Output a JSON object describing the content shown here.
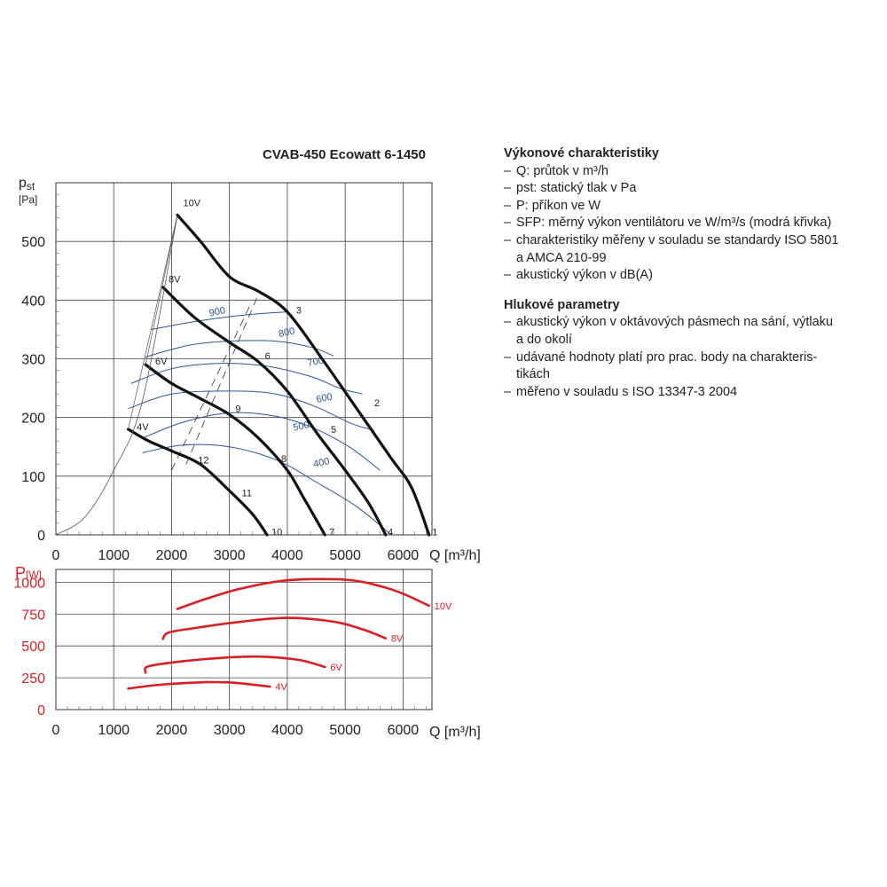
{
  "title": "CVAB-450 Ecowatt 6-1450",
  "colors": {
    "pressure_curves": "#111111",
    "sfp_curves": "#2b5597",
    "power_curves": "#d81f26",
    "grid": "#444444"
  },
  "side": {
    "sections": [
      {
        "heading": "Výkonové charakteristiky",
        "items": [
          [
            "Q: průtok v m³/h"
          ],
          [
            "pst: statický tlak v Pa"
          ],
          [
            "P: příkon ve W"
          ],
          [
            "SFP: měrný výkon ventilátoru ve W/m³/s (modrá křivka)"
          ],
          [
            "charakteristiky měřeny v souladu se standardy ISO 5801",
            "a AMCA 210-99"
          ],
          [
            "akustický výkon v dB(A)"
          ]
        ]
      },
      {
        "heading": "Hlukové parametry",
        "items": [
          [
            "akustický výkon v oktávových pásmech na sání, výtlaku",
            "a do okolí"
          ],
          [
            "udávané hodnoty platí pro prac. body na charakteris-",
            "tikách"
          ],
          [
            "měřeno v souladu s ISO 13347-3 2004"
          ]
        ]
      }
    ]
  },
  "chart_data": [
    {
      "type": "line",
      "ylabel_main": "p",
      "ylabel_sub": "st",
      "yunit": "[Pa]",
      "xlabel": "Q [m³/h]",
      "xlim": [
        0,
        6500
      ],
      "ylim": [
        0,
        600
      ],
      "xticks": [
        0,
        1000,
        2000,
        3000,
        4000,
        5000,
        6000
      ],
      "yticks": [
        0,
        100,
        200,
        300,
        400,
        500
      ],
      "grid": true,
      "series": [
        {
          "name": "10V",
          "points": [
            [
              2100,
              545
            ],
            [
              2500,
              500
            ],
            [
              3000,
              440
            ],
            [
              3500,
              415
            ],
            [
              4000,
              380
            ],
            [
              4600,
              300
            ],
            [
              5200,
              215
            ],
            [
              5800,
              130
            ],
            [
              6150,
              80
            ],
            [
              6450,
              0
            ]
          ]
        },
        {
          "name": "8V",
          "points": [
            [
              1850,
              422
            ],
            [
              2400,
              370
            ],
            [
              3000,
              328
            ],
            [
              3500,
              295
            ],
            [
              4000,
              245
            ],
            [
              4500,
              175
            ],
            [
              5000,
              110
            ],
            [
              5400,
              55
            ],
            [
              5700,
              0
            ]
          ]
        },
        {
          "name": "6V",
          "points": [
            [
              1550,
              290
            ],
            [
              2000,
              258
            ],
            [
              2500,
              232
            ],
            [
              3000,
              205
            ],
            [
              3500,
              165
            ],
            [
              4000,
              110
            ],
            [
              4300,
              60
            ],
            [
              4650,
              0
            ]
          ]
        },
        {
          "name": "4V",
          "points": [
            [
              1250,
              180
            ],
            [
              1600,
              160
            ],
            [
              2000,
              143
            ],
            [
              2500,
              120
            ],
            [
              3000,
              75
            ],
            [
              3400,
              35
            ],
            [
              3650,
              0
            ]
          ]
        },
        {
          "name": "system",
          "points": [
            [
              0,
              0
            ],
            [
              500,
              30
            ],
            [
              1000,
              110
            ],
            [
              1500,
              230
            ],
            [
              2100,
              545
            ]
          ]
        }
      ],
      "sfp_series": [
        {
          "name": "900",
          "points": [
            [
              1650,
              350
            ],
            [
              2500,
              365
            ],
            [
              3300,
              375
            ],
            [
              4000,
              380
            ]
          ]
        },
        {
          "name": "800",
          "points": [
            [
              1550,
              303
            ],
            [
              2300,
              323
            ],
            [
              3000,
              330
            ],
            [
              3800,
              330
            ],
            [
              4400,
              320
            ],
            [
              4800,
              305
            ]
          ]
        },
        {
          "name": "700",
          "points": [
            [
              1300,
              258
            ],
            [
              2000,
              283
            ],
            [
              2800,
              292
            ],
            [
              3600,
              288
            ],
            [
              4400,
              270
            ],
            [
              4900,
              250
            ],
            [
              5300,
              240
            ]
          ]
        },
        {
          "name": "600",
          "points": [
            [
              1250,
              215
            ],
            [
              2000,
              240
            ],
            [
              3000,
              245
            ],
            [
              3800,
              240
            ],
            [
              4500,
              218
            ],
            [
              5100,
              190
            ],
            [
              5500,
              178
            ]
          ]
        },
        {
          "name": "500",
          "points": [
            [
              1500,
              165
            ],
            [
              2200,
              192
            ],
            [
              3000,
              208
            ],
            [
              3800,
              202
            ],
            [
              4500,
              180
            ],
            [
              5100,
              148
            ],
            [
              5600,
              110
            ]
          ]
        },
        {
          "name": "400",
          "points": [
            [
              1500,
              140
            ],
            [
              2200,
              153
            ],
            [
              3000,
              150
            ],
            [
              3800,
              128
            ],
            [
              4500,
              90
            ],
            [
              5200,
              48
            ],
            [
              5800,
              0
            ]
          ]
        }
      ],
      "point_labels": [
        "1",
        "2",
        "3",
        "4",
        "5",
        "6",
        "7",
        "8",
        "9",
        "10",
        "11",
        "12"
      ]
    },
    {
      "type": "line",
      "ylabel_main": "P",
      "yunit": "[W]",
      "xlabel": "Q [m³/h]",
      "xlim": [
        0,
        6500
      ],
      "ylim": [
        0,
        1100
      ],
      "xticks": [
        0,
        1000,
        2000,
        3000,
        4000,
        5000,
        6000
      ],
      "yticks": [
        0,
        250,
        500,
        750,
        1000
      ],
      "grid": true,
      "series": [
        {
          "name": "10V",
          "points": [
            [
              2100,
              790
            ],
            [
              2600,
              870
            ],
            [
              3200,
              950
            ],
            [
              4000,
              1015
            ],
            [
              5000,
              1020
            ],
            [
              5600,
              970
            ],
            [
              6000,
              910
            ],
            [
              6450,
              815
            ]
          ]
        },
        {
          "name": "8V",
          "points": [
            [
              1850,
              555
            ],
            [
              1950,
              605
            ],
            [
              2400,
              640
            ],
            [
              3200,
              690
            ],
            [
              4000,
              720
            ],
            [
              4800,
              690
            ],
            [
              5300,
              630
            ],
            [
              5700,
              560
            ]
          ]
        },
        {
          "name": "6V",
          "points": [
            [
              1550,
              290
            ],
            [
              1600,
              340
            ],
            [
              2200,
              380
            ],
            [
              3000,
              410
            ],
            [
              3600,
              415
            ],
            [
              4200,
              390
            ],
            [
              4650,
              335
            ]
          ]
        },
        {
          "name": "4V",
          "points": [
            [
              1250,
              165
            ],
            [
              1800,
              195
            ],
            [
              2600,
              215
            ],
            [
              3100,
              210
            ],
            [
              3700,
              180
            ]
          ]
        }
      ]
    }
  ]
}
